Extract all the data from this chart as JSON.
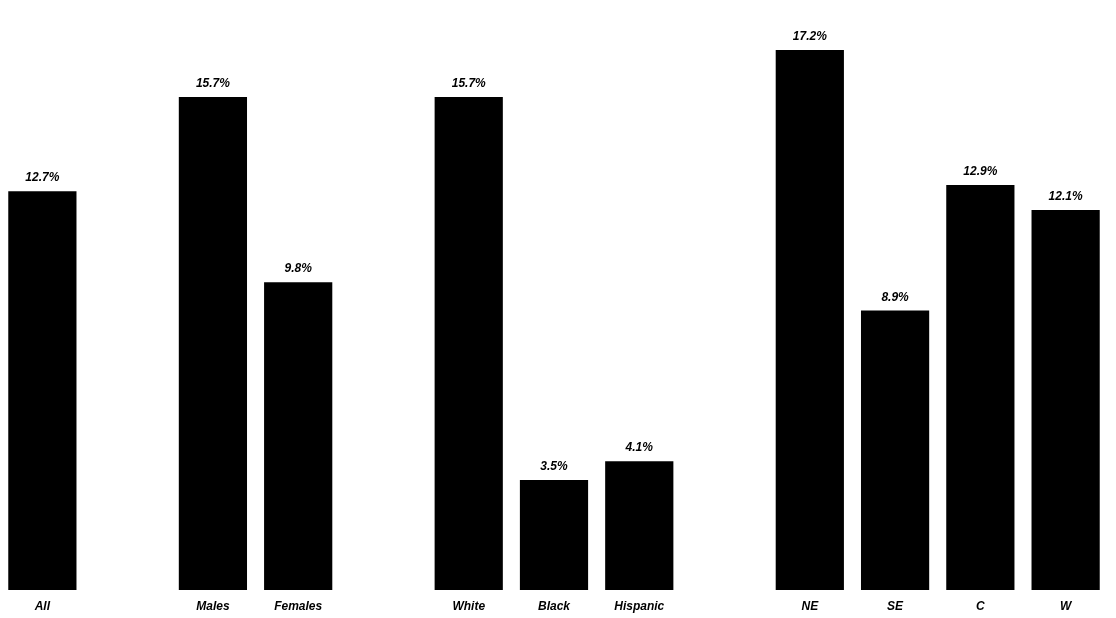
{
  "chart_data": {
    "type": "bar",
    "categories": [
      "All",
      null,
      "Males",
      "Females",
      null,
      "White",
      "Black",
      "Hispanic",
      null,
      "NE",
      "SE",
      "C",
      "W"
    ],
    "values": [
      12.7,
      null,
      15.7,
      9.8,
      null,
      15.7,
      3.5,
      4.1,
      null,
      17.2,
      8.9,
      12.9,
      12.1
    ],
    "value_labels": [
      "12.7%",
      null,
      "15.7%",
      "9.8%",
      null,
      "15.7%",
      "3.5%",
      "4.1%",
      null,
      "17.2%",
      "8.9%",
      "12.9%",
      "12.1%"
    ],
    "color": "#000000"
  }
}
